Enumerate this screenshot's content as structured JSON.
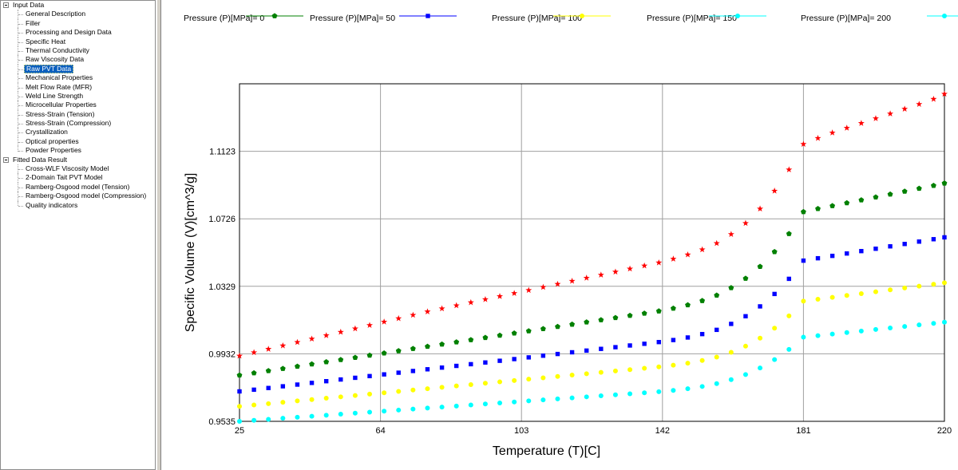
{
  "tree": {
    "groups": [
      {
        "label": "Input Data",
        "items": [
          "General Description",
          "Filler",
          "Processing and Design Data",
          "Specific Heat",
          "Thermal Conductivity",
          "Raw Viscosity Data",
          "Raw PVT Data",
          "Mechanical Properties",
          "Melt Flow Rate (MFR)",
          "Weld Line Strength",
          "Microcellular Properties",
          "Stress-Strain (Tension)",
          "Stress-Strain (Compression)",
          "Crystallization",
          "Optical properties",
          "Powder Properties"
        ]
      },
      {
        "label": "Fitted Data Result",
        "items": [
          "Cross-WLF Viscosity Model",
          "2-Domain Tait PVT Model",
          "Ramberg-Osgood model (Tension)",
          "Ramberg-Osgood model (Compression)",
          "Quality indicators"
        ]
      }
    ],
    "selected": "Raw PVT Data"
  },
  "chart_data": {
    "type": "scatter",
    "xlabel": "Temperature (T)[C]",
    "ylabel": "Specific Volume (V)[cm^3/g]",
    "xlim": [
      25,
      220
    ],
    "ylim": [
      0.9535,
      1.152
    ],
    "xticks": [
      "25",
      "64",
      "103",
      "142",
      "181",
      "220"
    ],
    "yticks": [
      "0.9535",
      "0.9932",
      "1.0329",
      "1.0726",
      "1.1123"
    ],
    "grid": true,
    "legend": "top",
    "x": [
      25,
      29,
      33,
      37,
      41,
      45,
      49,
      53,
      57,
      61,
      65,
      69,
      73,
      77,
      81,
      85,
      89,
      93,
      97,
      101,
      105,
      109,
      113,
      117,
      121,
      125,
      129,
      133,
      137,
      141,
      145,
      149,
      153,
      157,
      161,
      165,
      169,
      173,
      177,
      181,
      185,
      189,
      193,
      197,
      201,
      205,
      209,
      213,
      217,
      220
    ],
    "series": [
      {
        "name": "Pressure (P)[MPa]= 0",
        "color": "#ff0000",
        "marker": "star",
        "values": [
          0.992,
          0.994,
          0.996,
          0.998,
          1.0,
          1.002,
          1.004,
          1.006,
          1.008,
          1.01,
          1.012,
          1.014,
          1.016,
          1.018,
          1.0198,
          1.0216,
          1.0234,
          1.0252,
          1.027,
          1.0288,
          1.0306,
          1.0324,
          1.0342,
          1.036,
          1.0378,
          1.0396,
          1.0414,
          1.0432,
          1.045,
          1.0468,
          1.049,
          1.0515,
          1.0545,
          1.0582,
          1.0635,
          1.07,
          1.0785,
          1.089,
          1.1015,
          1.1165,
          1.12,
          1.1232,
          1.126,
          1.1288,
          1.1316,
          1.1344,
          1.1372,
          1.14,
          1.143,
          1.146
        ]
      },
      {
        "name": "Pressure (P)[MPa]= 50",
        "color": "#008000",
        "marker": "pentagon",
        "values": [
          0.9806,
          0.9819,
          0.9832,
          0.9845,
          0.9858,
          0.9871,
          0.9884,
          0.9897,
          0.991,
          0.9923,
          0.9936,
          0.9949,
          0.9962,
          0.9975,
          0.9988,
          1.0001,
          1.0014,
          1.0027,
          1.004,
          1.0053,
          1.0066,
          1.0079,
          1.0092,
          1.0105,
          1.0118,
          1.0131,
          1.0144,
          1.0157,
          1.017,
          1.0183,
          1.0199,
          1.0219,
          1.0244,
          1.0276,
          1.032,
          1.0375,
          1.0445,
          1.0532,
          1.0638,
          1.0767,
          1.0785,
          1.0802,
          1.0819,
          1.0836,
          1.0853,
          1.087,
          1.0887,
          1.0904,
          1.0921,
          1.0935
        ]
      },
      {
        "name": "Pressure (P)[MPa]= 100",
        "color": "#0000ff",
        "marker": "square",
        "values": [
          0.9711,
          0.9721,
          0.9731,
          0.9741,
          0.9751,
          0.9761,
          0.9771,
          0.9781,
          0.9791,
          0.9801,
          0.9811,
          0.9821,
          0.9831,
          0.9841,
          0.9851,
          0.9861,
          0.9871,
          0.9881,
          0.9891,
          0.9901,
          0.9911,
          0.9921,
          0.9931,
          0.9941,
          0.9951,
          0.9961,
          0.9971,
          0.9981,
          0.9991,
          1.0001,
          1.0013,
          1.0028,
          1.0048,
          1.0073,
          1.0108,
          1.0153,
          1.0211,
          1.0284,
          1.0373,
          1.048,
          1.0494,
          1.0508,
          1.0522,
          1.0536,
          1.055,
          1.0564,
          1.0578,
          1.0592,
          1.0606,
          1.0617
        ]
      },
      {
        "name": "Pressure (P)[MPa]= 150",
        "color": "#ffff00",
        "marker": "circle",
        "values": [
          0.9623,
          0.9631,
          0.9639,
          0.9647,
          0.9655,
          0.9663,
          0.9671,
          0.9679,
          0.9687,
          0.9695,
          0.9703,
          0.9711,
          0.9719,
          0.9727,
          0.9735,
          0.9743,
          0.9751,
          0.9759,
          0.9767,
          0.9775,
          0.9783,
          0.9791,
          0.9799,
          0.9807,
          0.9815,
          0.9823,
          0.9831,
          0.9839,
          0.9847,
          0.9855,
          0.9865,
          0.9877,
          0.9893,
          0.9913,
          0.9941,
          0.9977,
          1.0024,
          1.0083,
          1.0155,
          1.0242,
          1.0253,
          1.0264,
          1.0275,
          1.0286,
          1.0297,
          1.0308,
          1.0319,
          1.033,
          1.0341,
          1.035
        ]
      },
      {
        "name": "Pressure (P)[MPa]= 200",
        "color": "#00ffff",
        "marker": "circle",
        "values": [
          0.9535,
          0.9541,
          0.9547,
          0.9553,
          0.9559,
          0.9565,
          0.9571,
          0.9577,
          0.9583,
          0.9589,
          0.9595,
          0.9601,
          0.9607,
          0.9613,
          0.9619,
          0.9625,
          0.9631,
          0.9637,
          0.9643,
          0.9649,
          0.9655,
          0.9661,
          0.9667,
          0.9673,
          0.9679,
          0.9685,
          0.9691,
          0.9697,
          0.9703,
          0.9709,
          0.9717,
          0.9727,
          0.974,
          0.9757,
          0.978,
          0.981,
          0.9849,
          0.9898,
          0.9958,
          1.003,
          1.0039,
          1.0048,
          1.0057,
          1.0066,
          1.0075,
          1.0084,
          1.0093,
          1.0102,
          1.0111,
          1.0118
        ]
      }
    ]
  }
}
